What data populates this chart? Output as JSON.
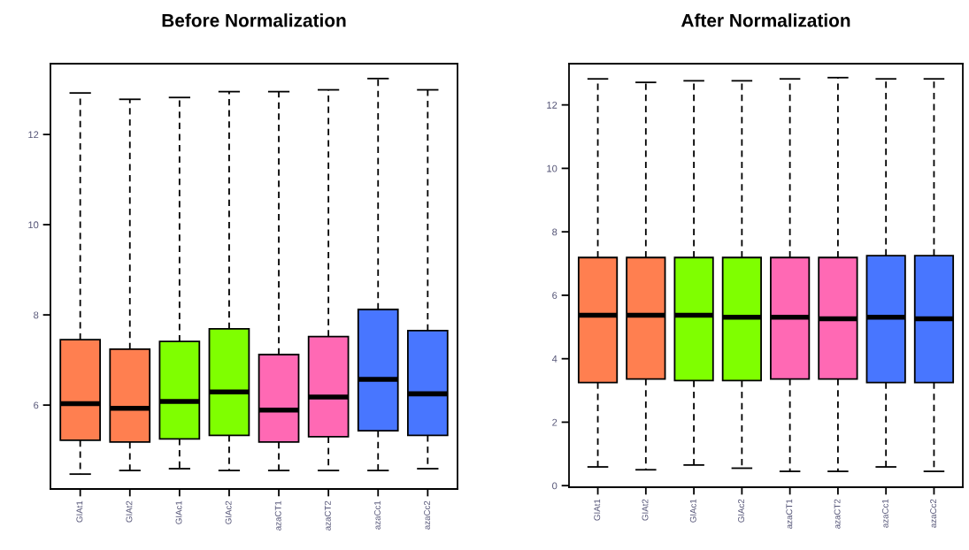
{
  "chart_data": [
    {
      "type": "box",
      "title": "Before Normalization",
      "categories": [
        "GIAt1",
        "GIAt2",
        "GIAc1",
        "GIAc2",
        "azaCT1",
        "azaCT2",
        "azaCc1",
        "azaCc2"
      ],
      "colors": [
        "#ff7f50",
        "#ff7f50",
        "#7fff00",
        "#7fff00",
        "#ff69b4",
        "#ff69b4",
        "#4876ff",
        "#4876ff"
      ],
      "boxes": [
        {
          "low": 4.47,
          "q1": 5.22,
          "median": 6.03,
          "q3": 7.45,
          "high": 12.92
        },
        {
          "low": 4.55,
          "q1": 5.18,
          "median": 5.93,
          "q3": 7.24,
          "high": 12.78
        },
        {
          "low": 4.59,
          "q1": 5.25,
          "median": 6.08,
          "q3": 7.41,
          "high": 12.82
        },
        {
          "low": 4.55,
          "q1": 5.33,
          "median": 6.29,
          "q3": 7.69,
          "high": 12.95
        },
        {
          "low": 4.55,
          "q1": 5.18,
          "median": 5.89,
          "q3": 7.12,
          "high": 12.95
        },
        {
          "low": 4.55,
          "q1": 5.3,
          "median": 6.18,
          "q3": 7.52,
          "high": 12.99
        },
        {
          "low": 4.55,
          "q1": 5.43,
          "median": 6.57,
          "q3": 8.12,
          "high": 13.24
        },
        {
          "low": 4.59,
          "q1": 5.33,
          "median": 6.25,
          "q3": 7.65,
          "high": 12.99
        }
      ],
      "ylim": [
        4.14,
        13.57
      ],
      "yticks": [
        6,
        8,
        10,
        12
      ],
      "grid": false,
      "line_style": "dashed"
    },
    {
      "type": "box",
      "title": "After Normalization",
      "categories": [
        "GIAt1",
        "GIAt2",
        "GIAc1",
        "GIAc2",
        "azaCT1",
        "azaCT2",
        "azaCc1",
        "azaCc2"
      ],
      "colors": [
        "#ff7f50",
        "#ff7f50",
        "#7fff00",
        "#7fff00",
        "#ff69b4",
        "#ff69b4",
        "#4876ff",
        "#4876ff"
      ],
      "boxes": [
        {
          "low": 0.59,
          "q1": 3.25,
          "median": 5.37,
          "q3": 7.19,
          "high": 12.82
        },
        {
          "low": 0.5,
          "q1": 3.36,
          "median": 5.37,
          "q3": 7.19,
          "high": 12.71
        },
        {
          "low": 0.65,
          "q1": 3.31,
          "median": 5.37,
          "q3": 7.19,
          "high": 12.76
        },
        {
          "low": 0.55,
          "q1": 3.31,
          "median": 5.31,
          "q3": 7.19,
          "high": 12.76
        },
        {
          "low": 0.45,
          "q1": 3.36,
          "median": 5.31,
          "q3": 7.19,
          "high": 12.82
        },
        {
          "low": 0.45,
          "q1": 3.36,
          "median": 5.26,
          "q3": 7.19,
          "high": 12.86
        },
        {
          "low": 0.59,
          "q1": 3.25,
          "median": 5.31,
          "q3": 7.25,
          "high": 12.82
        },
        {
          "low": 0.45,
          "q1": 3.25,
          "median": 5.26,
          "q3": 7.25,
          "high": 12.82
        }
      ],
      "ylim": [
        -0.05,
        13.3
      ],
      "yticks": [
        0,
        2,
        4,
        6,
        8,
        10,
        12
      ],
      "grid": false,
      "line_style": "dashed"
    }
  ]
}
